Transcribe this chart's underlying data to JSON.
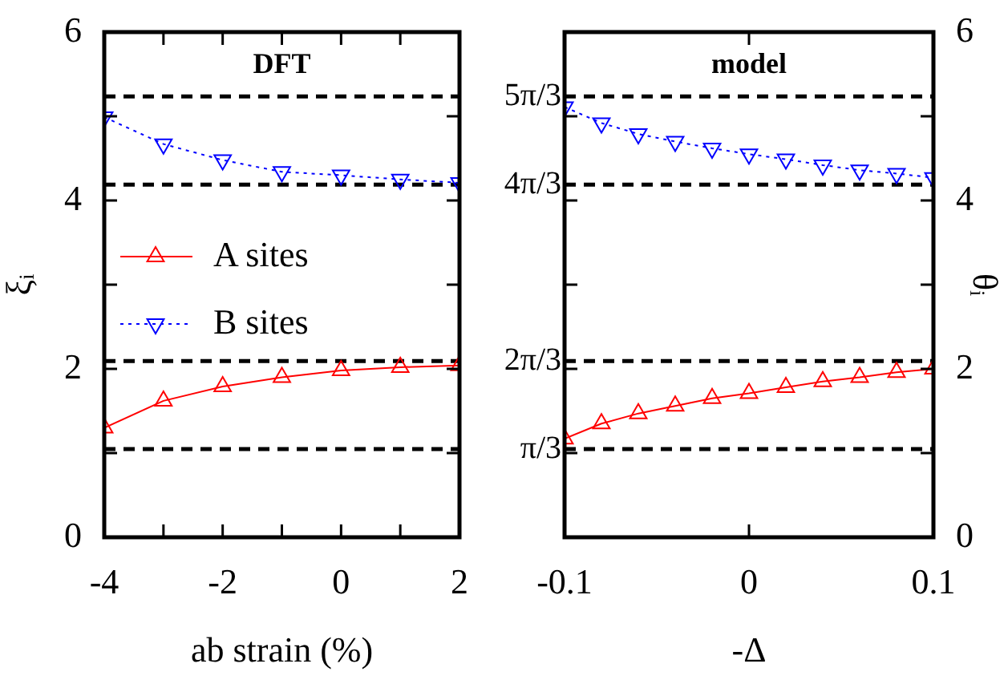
{
  "chart_data": [
    {
      "type": "line",
      "title": "DFT",
      "xlabel": "ab strain (%)",
      "ylabel": "ξᵢ",
      "x": [
        -4,
        -3,
        -2,
        -1,
        0,
        1,
        2
      ],
      "xlim": [
        -4,
        2
      ],
      "xticks": [
        -4,
        {
          "value": -3,
          "label": null
        },
        -2,
        {
          "value": -1,
          "label": null
        },
        0,
        {
          "value": 1,
          "label": null
        },
        2
      ],
      "ylim": [
        0,
        6
      ],
      "yticks": [
        0,
        {
          "value": 1,
          "label": null
        },
        2,
        {
          "value": 3,
          "label": null
        },
        4,
        {
          "value": 5,
          "label": null
        },
        6
      ],
      "legend": "left",
      "series": [
        {
          "name": "A sites",
          "color": "#ff0000",
          "marker": "triangle",
          "line_style": "solid",
          "values": [
            1.3,
            1.62,
            1.79,
            1.9,
            1.98,
            2.02,
            2.04
          ]
        },
        {
          "name": "B sites",
          "color": "#0000ff",
          "marker": "triangle",
          "line_style": "dotted",
          "values": [
            4.99,
            4.67,
            4.48,
            4.34,
            4.3,
            4.25,
            4.21
          ]
        }
      ],
      "ref_lines": [
        {
          "axis": "y",
          "value": 1.047,
          "color": "#000000",
          "line_style": "dashed"
        },
        {
          "axis": "y",
          "value": 2.094,
          "color": "#000000",
          "line_style": "dashed"
        },
        {
          "axis": "y",
          "value": 4.189,
          "color": "#000000",
          "line_style": "dashed"
        },
        {
          "axis": "y",
          "value": 5.236,
          "color": "#000000",
          "line_style": "dashed"
        }
      ]
    },
    {
      "type": "line",
      "title": "model",
      "xlabel": "-Δ",
      "y2label": "θᵢ",
      "x": [
        -0.1,
        -0.08,
        -0.06,
        -0.04,
        -0.02,
        0,
        0.02,
        0.04,
        0.06,
        0.08,
        0.1
      ],
      "xlim": [
        -0.1,
        0.1
      ],
      "xticks": [
        -0.1,
        0,
        0.1
      ],
      "y2lim": [
        0,
        6
      ],
      "y2ticks": [
        0,
        {
          "value": 1,
          "label": null
        },
        2,
        {
          "value": 3,
          "label": null
        },
        4,
        {
          "value": 5,
          "label": null
        },
        6
      ],
      "series": [
        {
          "color": "#ff0000",
          "marker": "triangle",
          "line_style": "solid",
          "axis": "y2",
          "values": [
            1.17,
            1.35,
            1.47,
            1.56,
            1.65,
            1.71,
            1.78,
            1.85,
            1.9,
            1.96,
            2.0
          ]
        },
        {
          "color": "#0000ff",
          "marker": "triangle",
          "line_style": "dotted",
          "axis": "y2",
          "values": [
            5.11,
            4.92,
            4.79,
            4.7,
            4.62,
            4.55,
            4.49,
            4.42,
            4.36,
            4.32,
            4.27
          ]
        }
      ],
      "ref_lines": [
        {
          "axis": "y2",
          "value": 1.047,
          "label": "π/3",
          "color": "#000000",
          "line_style": "dashed"
        },
        {
          "axis": "y2",
          "value": 2.094,
          "label": "2π/3",
          "color": "#000000",
          "line_style": "dashed"
        },
        {
          "axis": "y2",
          "value": 4.189,
          "label": "4π/3",
          "color": "#000000",
          "line_style": "dashed"
        },
        {
          "axis": "y2",
          "value": 5.236,
          "label": "5π/3",
          "color": "#000000",
          "line_style": "dashed"
        }
      ]
    }
  ]
}
